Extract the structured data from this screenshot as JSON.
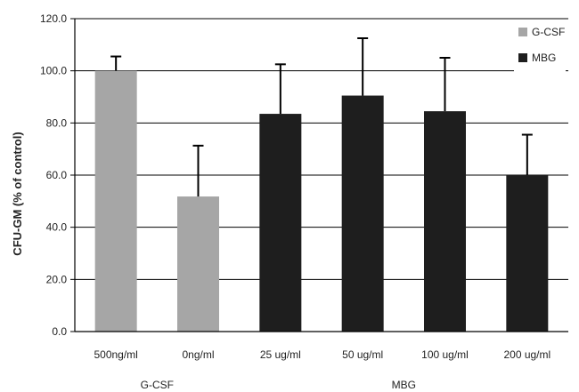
{
  "chart_data": {
    "type": "bar",
    "categories": [
      "500ng/ml",
      "0ng/ml",
      "25 ug/ml",
      "50 ug/ml",
      "100 ug/ml",
      "200 ug/ml"
    ],
    "groups": [
      {
        "label": "G-CSF",
        "categories": [
          "500ng/ml",
          "0ng/ml"
        ]
      },
      {
        "label": "MBG",
        "categories": [
          "25 ug/ml",
          "50 ug/ml",
          "100 ug/ml",
          "200 ug/ml"
        ]
      }
    ],
    "series": [
      {
        "name": "G-CSF",
        "color": "#a6a6a6",
        "values": [
          100.0,
          51.8,
          null,
          null,
          null,
          null
        ],
        "error": [
          5.5,
          19.5,
          null,
          null,
          null,
          null
        ]
      },
      {
        "name": "MBG",
        "color": "#1e1e1e",
        "values": [
          null,
          null,
          83.5,
          90.5,
          84.5,
          60.0
        ],
        "error": [
          null,
          null,
          19.0,
          22.0,
          20.5,
          15.5
        ]
      }
    ],
    "ylabel": "CFU-GM (% of control)",
    "xlabel": "",
    "ylim": [
      0,
      120
    ],
    "yticks": [
      "0.0",
      "20.0",
      "40.0",
      "60.0",
      "80.0",
      "100.0",
      "120.0"
    ],
    "grid": true,
    "legend_position": "top-right"
  }
}
